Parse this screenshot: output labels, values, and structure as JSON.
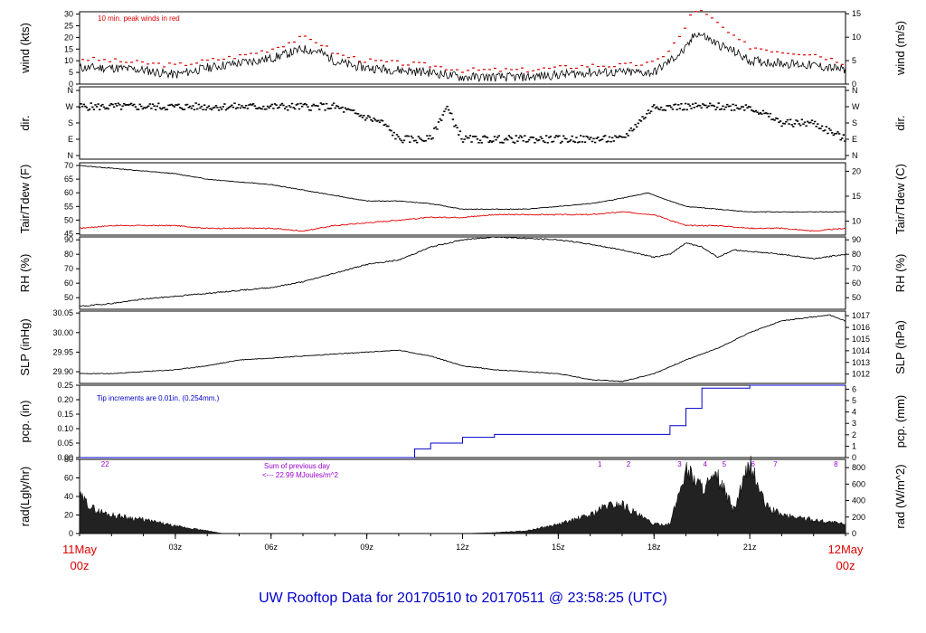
{
  "title": "UW Rooftop Data for 20170510  to  20170511 @ 23:58:25  (UTC)",
  "colors": {
    "black": "#000000",
    "red": "#e00000",
    "blue": "#0000cc",
    "purple": "#9900cc",
    "title": "#0000cc"
  },
  "time_axis": {
    "hour_ticks": [
      "03z",
      "06z",
      "09z",
      "12z",
      "15z",
      "18z",
      "21z"
    ],
    "start_date": "11May",
    "start_hour": "00z",
    "end_date": "12May",
    "end_hour": "00z",
    "range_hours": [
      0,
      24
    ]
  },
  "panels": [
    {
      "id": "wind",
      "left_label": "wind (kts)",
      "right_label": "wind (m/s)",
      "left_ticks": [
        "0",
        "5",
        "10",
        "15",
        "20",
        "25",
        "30"
      ],
      "right_ticks": [
        "0",
        "5",
        "10",
        "15"
      ],
      "annotation": "10 min. peak winds in red"
    },
    {
      "id": "dir",
      "left_label": "dir.",
      "right_label": "dir.",
      "left_ticks": [
        "N",
        "E",
        "S",
        "W",
        "N"
      ],
      "right_ticks": [
        "N",
        "E",
        "S",
        "W",
        "N"
      ]
    },
    {
      "id": "temp",
      "left_label": "Tair/Tdew (F)",
      "right_label": "Tair/Tdew (C)",
      "left_ticks": [
        "45",
        "50",
        "55",
        "60",
        "65",
        "70"
      ],
      "right_ticks": [
        "10",
        "15",
        "20"
      ]
    },
    {
      "id": "rh",
      "left_label": "RH (%)",
      "right_label": "RH (%)",
      "left_ticks": [
        "50",
        "60",
        "70",
        "80",
        "90"
      ],
      "right_ticks": [
        "50",
        "60",
        "70",
        "80",
        "90"
      ]
    },
    {
      "id": "slp",
      "left_label": "SLP (inHg)",
      "right_label": "SLP (hPa)",
      "left_ticks": [
        "29.90",
        "29.95",
        "30.00",
        "30.05"
      ],
      "right_ticks": [
        "1012",
        "1013",
        "1014",
        "1015",
        "1016",
        "1017"
      ]
    },
    {
      "id": "pcp",
      "left_label": "pcp. (in)",
      "right_label": "pcp. (mm)",
      "left_ticks": [
        "0.00",
        "0.05",
        "0.10",
        "0.15",
        "0.20",
        "0.25"
      ],
      "right_ticks": [
        "0",
        "1",
        "2",
        "3",
        "4",
        "5",
        "6"
      ],
      "annotation": "Tip increments are 0.01in. (0.254mm.)"
    },
    {
      "id": "rad",
      "left_label": "rad(Lgly/hr)",
      "right_label": "rad (W/m^2)",
      "left_ticks": [
        "0",
        "20",
        "40",
        "60",
        "80"
      ],
      "right_ticks": [
        "0",
        "200",
        "400",
        "600",
        "800"
      ],
      "annotation_line1": "Sum of previous day",
      "annotation_line2": "<--- 22.99 MJoules/m^2"
    }
  ],
  "hour_markers": [
    {
      "label": "22",
      "h": 0.8
    },
    {
      "label": "1",
      "h": 16.3
    },
    {
      "label": "2",
      "h": 17.2
    },
    {
      "label": "3",
      "h": 18.8
    },
    {
      "label": "4",
      "h": 19.6
    },
    {
      "label": "5",
      "h": 20.2
    },
    {
      "label": "6",
      "h": 21.1
    },
    {
      "label": "7",
      "h": 21.8
    },
    {
      "label": "8",
      "h": 23.7
    }
  ],
  "chart_data": [
    {
      "type": "line",
      "panel": "wind",
      "x_unit": "hours UTC",
      "y_unit": "kts",
      "ylim": [
        0,
        30
      ],
      "series": [
        {
          "values": [
            [
              0,
              7
            ],
            [
              1,
              7
            ],
            [
              2,
              6
            ],
            [
              3,
              4
            ],
            [
              4,
              7
            ],
            [
              5,
              9
            ],
            [
              6,
              11
            ],
            [
              6.5,
              13
            ],
            [
              7,
              15
            ],
            [
              7.5,
              14
            ],
            [
              8,
              10
            ],
            [
              8.5,
              8
            ],
            [
              9,
              7
            ],
            [
              10,
              6
            ],
            [
              11,
              5
            ],
            [
              12,
              3
            ],
            [
              13,
              3
            ],
            [
              14,
              3
            ],
            [
              15,
              4
            ],
            [
              16,
              5
            ],
            [
              17,
              5
            ],
            [
              18,
              5
            ],
            [
              18.5,
              10
            ],
            [
              19,
              15
            ],
            [
              19.3,
              22
            ],
            [
              19.5,
              21
            ],
            [
              20,
              17
            ],
            [
              20.5,
              14
            ],
            [
              21,
              10
            ],
            [
              22,
              9
            ],
            [
              23,
              8
            ],
            [
              24,
              6
            ]
          ]
        },
        {
          "values": [
            [
              0,
              11
            ],
            [
              1,
              10
            ],
            [
              2,
              9
            ],
            [
              3,
              8
            ],
            [
              4,
              10
            ],
            [
              5,
              12
            ],
            [
              6,
              15
            ],
            [
              7,
              20
            ],
            [
              7.5,
              18
            ],
            [
              8,
              13
            ],
            [
              9,
              10
            ],
            [
              10,
              9
            ],
            [
              11,
              8
            ],
            [
              12,
              6
            ],
            [
              13,
              6
            ],
            [
              14,
              6
            ],
            [
              15,
              7
            ],
            [
              16,
              8
            ],
            [
              17,
              8
            ],
            [
              18,
              9
            ],
            [
              18.5,
              15
            ],
            [
              19,
              24
            ],
            [
              19.2,
              32
            ],
            [
              19.5,
              31
            ],
            [
              20,
              26
            ],
            [
              20.5,
              20
            ],
            [
              21,
              16
            ],
            [
              22,
              14
            ],
            [
              23,
              13
            ],
            [
              24,
              9
            ]
          ]
        }
      ]
    },
    {
      "type": "scatter",
      "panel": "dir",
      "x_unit": "hours UTC",
      "y_unit": "direction",
      "values": [
        [
          0,
          "W"
        ],
        [
          2,
          "W"
        ],
        [
          4,
          "W"
        ],
        [
          6,
          "W"
        ],
        [
          8,
          "W"
        ],
        [
          9.5,
          "S"
        ],
        [
          10,
          "E"
        ],
        [
          11,
          "E"
        ],
        [
          11.5,
          "W"
        ],
        [
          12,
          "E"
        ],
        [
          13,
          "E"
        ],
        [
          14,
          "E"
        ],
        [
          15,
          "E"
        ],
        [
          16,
          "E"
        ],
        [
          17,
          "E"
        ],
        [
          18,
          "W"
        ],
        [
          19,
          "W"
        ],
        [
          20,
          "W"
        ],
        [
          21,
          "W"
        ],
        [
          22,
          "S"
        ],
        [
          23,
          "S"
        ],
        [
          24,
          "E"
        ]
      ]
    },
    {
      "type": "line",
      "panel": "temp",
      "x_unit": "hours UTC",
      "y_unit": "F",
      "ylim": [
        45,
        71
      ],
      "series": [
        {
          "values": [
            [
              0,
              70
            ],
            [
              1,
              69
            ],
            [
              2,
              68
            ],
            [
              3,
              67
            ],
            [
              4,
              65
            ],
            [
              5,
              64
            ],
            [
              6,
              63
            ],
            [
              7,
              61
            ],
            [
              8,
              59
            ],
            [
              9,
              57
            ],
            [
              10,
              57
            ],
            [
              11,
              56
            ],
            [
              12,
              54
            ],
            [
              13,
              54
            ],
            [
              14,
              54
            ],
            [
              15,
              55
            ],
            [
              16,
              56
            ],
            [
              17,
              58
            ],
            [
              17.8,
              60
            ],
            [
              18.5,
              57
            ],
            [
              19,
              55
            ],
            [
              20,
              54
            ],
            [
              21,
              53
            ],
            [
              22,
              53
            ],
            [
              23,
              53
            ],
            [
              24,
              53
            ]
          ]
        },
        {
          "values": [
            [
              0,
              47
            ],
            [
              1,
              48
            ],
            [
              2,
              48
            ],
            [
              3,
              48
            ],
            [
              4,
              47
            ],
            [
              5,
              47
            ],
            [
              6,
              47
            ],
            [
              7,
              46
            ],
            [
              8,
              48
            ],
            [
              9,
              49
            ],
            [
              10,
              50
            ],
            [
              11,
              51
            ],
            [
              12,
              51
            ],
            [
              13,
              52
            ],
            [
              14,
              52
            ],
            [
              15,
              52
            ],
            [
              16,
              52
            ],
            [
              17,
              53
            ],
            [
              18,
              52
            ],
            [
              18.5,
              50
            ],
            [
              19,
              48
            ],
            [
              20,
              48
            ],
            [
              21,
              47
            ],
            [
              22,
              47
            ],
            [
              23,
              46
            ],
            [
              24,
              47
            ]
          ]
        }
      ]
    },
    {
      "type": "line",
      "panel": "rh",
      "x_unit": "hours UTC",
      "y_unit": "%",
      "ylim": [
        42,
        92
      ],
      "series": [
        {
          "values": [
            [
              0,
              44
            ],
            [
              1,
              46
            ],
            [
              2,
              49
            ],
            [
              3,
              51
            ],
            [
              4,
              53
            ],
            [
              5,
              55
            ],
            [
              6,
              57
            ],
            [
              7,
              61
            ],
            [
              8,
              67
            ],
            [
              9,
              73
            ],
            [
              10,
              76
            ],
            [
              11,
              85
            ],
            [
              12,
              90
            ],
            [
              13,
              92
            ],
            [
              14,
              91
            ],
            [
              15,
              90
            ],
            [
              16,
              87
            ],
            [
              17,
              83
            ],
            [
              18,
              78
            ],
            [
              18.5,
              80
            ],
            [
              19,
              88
            ],
            [
              19.5,
              85
            ],
            [
              20,
              78
            ],
            [
              20.5,
              83
            ],
            [
              21,
              82
            ],
            [
              22,
              80
            ],
            [
              23,
              77
            ],
            [
              24,
              80
            ]
          ]
        }
      ]
    },
    {
      "type": "line",
      "panel": "slp",
      "x_unit": "hours UTC",
      "y_unit": "inHg",
      "ylim": [
        29.87,
        30.05
      ],
      "series": [
        {
          "values": [
            [
              0,
              29.895
            ],
            [
              1,
              29.895
            ],
            [
              2,
              29.9
            ],
            [
              3,
              29.905
            ],
            [
              4,
              29.915
            ],
            [
              5,
              29.93
            ],
            [
              6,
              29.935
            ],
            [
              7,
              29.94
            ],
            [
              8,
              29.945
            ],
            [
              9,
              29.95
            ],
            [
              10,
              29.955
            ],
            [
              11,
              29.94
            ],
            [
              12,
              29.915
            ],
            [
              13,
              29.905
            ],
            [
              14,
              29.9
            ],
            [
              15,
              29.895
            ],
            [
              16,
              29.88
            ],
            [
              17,
              29.875
            ],
            [
              18,
              29.895
            ],
            [
              19,
              29.93
            ],
            [
              20,
              29.96
            ],
            [
              21,
              30.0
            ],
            [
              22,
              30.03
            ],
            [
              23,
              30.04
            ],
            [
              23.5,
              30.045
            ],
            [
              24,
              30.03
            ]
          ]
        }
      ]
    },
    {
      "type": "line",
      "panel": "pcp",
      "x_unit": "hours UTC",
      "y_unit": "in",
      "ylim": [
        0,
        0.25
      ],
      "series": [
        {
          "values": [
            [
              0,
              0
            ],
            [
              10,
              0
            ],
            [
              10.5,
              0.03
            ],
            [
              11,
              0.05
            ],
            [
              12,
              0.07
            ],
            [
              13,
              0.08
            ],
            [
              14,
              0.08
            ],
            [
              15,
              0.08
            ],
            [
              16,
              0.08
            ],
            [
              17,
              0.08
            ],
            [
              18,
              0.08
            ],
            [
              18.5,
              0.11
            ],
            [
              19,
              0.17
            ],
            [
              19.5,
              0.24
            ],
            [
              20,
              0.24
            ],
            [
              21,
              0.25
            ],
            [
              24,
              0.25
            ]
          ]
        }
      ]
    },
    {
      "type": "area",
      "panel": "rad",
      "x_unit": "hours UTC",
      "y_unit": "Lgly/hr",
      "ylim": [
        0,
        80
      ],
      "series": [
        {
          "values": [
            [
              0,
              40
            ],
            [
              0.5,
              25
            ],
            [
              1,
              20
            ],
            [
              2,
              15
            ],
            [
              3,
              8
            ],
            [
              4,
              3
            ],
            [
              4.5,
              0
            ],
            [
              12,
              0
            ],
            [
              13,
              1
            ],
            [
              14,
              3
            ],
            [
              15,
              10
            ],
            [
              16,
              20
            ],
            [
              16.5,
              30
            ],
            [
              17,
              32
            ],
            [
              17.5,
              20
            ],
            [
              18,
              10
            ],
            [
              18.5,
              10
            ],
            [
              19,
              70
            ],
            [
              19.5,
              50
            ],
            [
              20,
              60
            ],
            [
              20.5,
              25
            ],
            [
              21,
              75
            ],
            [
              21.5,
              30
            ],
            [
              22,
              20
            ],
            [
              23,
              15
            ],
            [
              24,
              10
            ]
          ]
        }
      ]
    }
  ]
}
